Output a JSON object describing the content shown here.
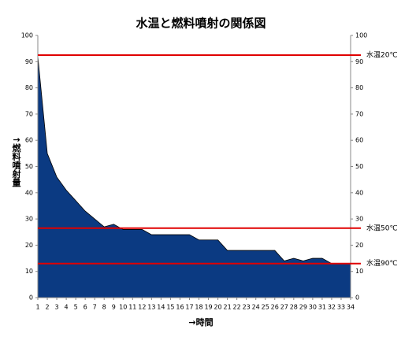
{
  "chart_data": {
    "type": "area",
    "title": "水温と燃料噴射の関係図",
    "x_label": "→時間",
    "y_label": "↑燃料噴射量",
    "categories": [
      "1",
      "2",
      "3",
      "4",
      "5",
      "6",
      "7",
      "8",
      "9",
      "10",
      "11",
      "12",
      "13",
      "14",
      "15",
      "16",
      "17",
      "18",
      "19",
      "20",
      "21",
      "22",
      "23",
      "24",
      "25",
      "26",
      "27",
      "28",
      "29",
      "30",
      "31",
      "32",
      "33",
      "34"
    ],
    "values": [
      92,
      55,
      46,
      41,
      37,
      33,
      30,
      27,
      28,
      26,
      26,
      26,
      24,
      24,
      24,
      24,
      24,
      22,
      22,
      22,
      18,
      18,
      18,
      18,
      18,
      18,
      14,
      15,
      14,
      15,
      15,
      13,
      13,
      13
    ],
    "color": "#0b3a82",
    "ylim": [
      0,
      100
    ],
    "yticks": [
      0,
      10,
      20,
      30,
      40,
      50,
      60,
      70,
      80,
      90,
      100
    ],
    "y2lim": [
      0,
      100
    ],
    "y2ticks": [
      0,
      10,
      20,
      30,
      40,
      50,
      60,
      70,
      80,
      90,
      100
    ],
    "reference_lines": [
      {
        "value": 92.5,
        "label": "水温20℃"
      },
      {
        "value": 26.5,
        "label": "水温50℃"
      },
      {
        "value": 13,
        "label": "水温90℃"
      }
    ],
    "reference_color": "#e00000",
    "grid": false
  }
}
